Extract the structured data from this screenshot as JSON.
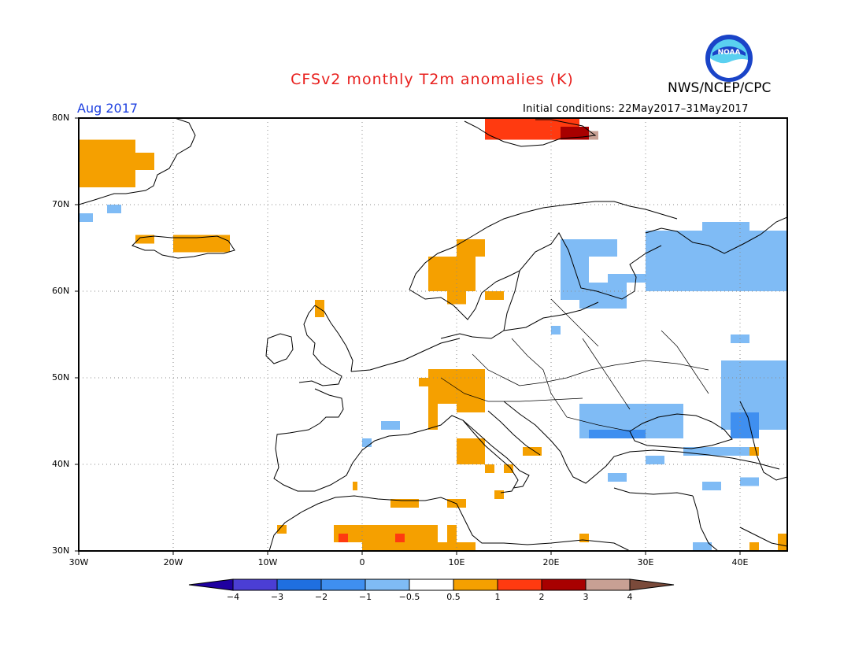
{
  "header": {
    "title": "CFSv2 monthly T2m anomalies (K)",
    "target_month": "Aug 2017",
    "agency": "NWS/NCEP/CPC",
    "initial_conditions": "Initial conditions: 22May2017–31May2017",
    "logo_text": "NOAA"
  },
  "map": {
    "projection": "lat-lon",
    "lon_range": [
      -30,
      45
    ],
    "lat_range": [
      30,
      80
    ],
    "grid": "dotted",
    "x_ticks": [
      "30W",
      "20W",
      "10W",
      "0",
      "10E",
      "20E",
      "30E",
      "40E"
    ],
    "y_ticks": [
      "80N",
      "70N",
      "60N",
      "50N",
      "40N",
      "30N"
    ]
  },
  "colorbar": {
    "boundaries": [
      "−4",
      "−3",
      "−2",
      "−1",
      "−0.5",
      "0.5",
      "1",
      "2",
      "3",
      "4"
    ],
    "colors": [
      "#1f00a0",
      "#4b3ed4",
      "#1f6fe0",
      "#3f8ff0",
      "#7fbbf5",
      "#ffffff",
      "#f5a000",
      "#ff3a10",
      "#a80000",
      "#c8a094",
      "#7a4a3a"
    ]
  }
}
